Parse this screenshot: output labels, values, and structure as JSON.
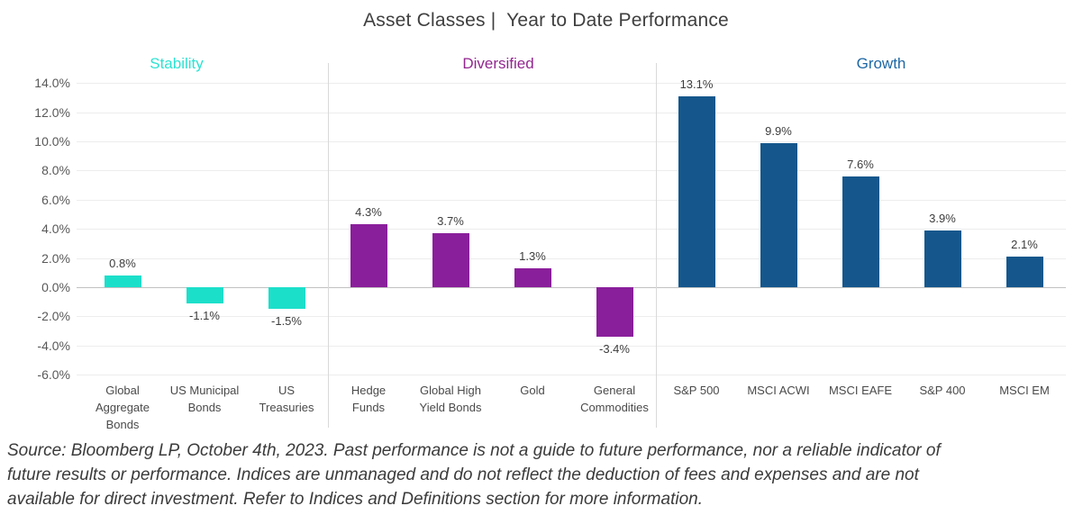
{
  "title": "Asset Classes |  Year to Date Performance",
  "chart_data": {
    "type": "bar",
    "title": "Asset Classes |  Year to Date Performance",
    "xlabel": "",
    "ylabel": "",
    "ylim": [
      -6,
      14
    ],
    "ytick_step": 2,
    "ytick_suffix": "%",
    "grid": true,
    "legend": "none",
    "groups": [
      {
        "name": "Stability",
        "bar_color": "#1cdfca",
        "label_color": "#2de2d2",
        "bars": [
          {
            "category": "Global\nAggregate\nBonds",
            "value": 0.8
          },
          {
            "category": "US Municipal\nBonds",
            "value": -1.1
          },
          {
            "category": "US\nTreasuries",
            "value": -1.5
          }
        ]
      },
      {
        "name": "Diversified",
        "bar_color": "#8a1f9b",
        "label_color": "#92278f",
        "bars": [
          {
            "category": "Hedge\nFunds",
            "value": 4.3
          },
          {
            "category": "Global High\nYield Bonds",
            "value": 3.7
          },
          {
            "category": "Gold",
            "value": 1.3
          },
          {
            "category": "General\nCommodities",
            "value": -3.4
          }
        ]
      },
      {
        "name": "Growth",
        "bar_color": "#15578c",
        "label_color": "#1f68a5",
        "bars": [
          {
            "category": "S&P 500",
            "value": 13.1
          },
          {
            "category": "MSCI ACWI",
            "value": 9.9
          },
          {
            "category": "MSCI EAFE",
            "value": 7.6
          },
          {
            "category": "S&P 400",
            "value": 3.9
          },
          {
            "category": "MSCI EM",
            "value": 2.1
          }
        ]
      }
    ]
  },
  "footer": {
    "source_text": "Source: Bloomberg LP, October 4th, 2023. Past performance is not a guide to future performance, nor a reliable indicator of\nfuture results or performance. Indices are unmanaged and do not reflect the deduction of fees and expenses and are not\navailable for direct investment. Refer to Indices and Definitions section for more information."
  }
}
